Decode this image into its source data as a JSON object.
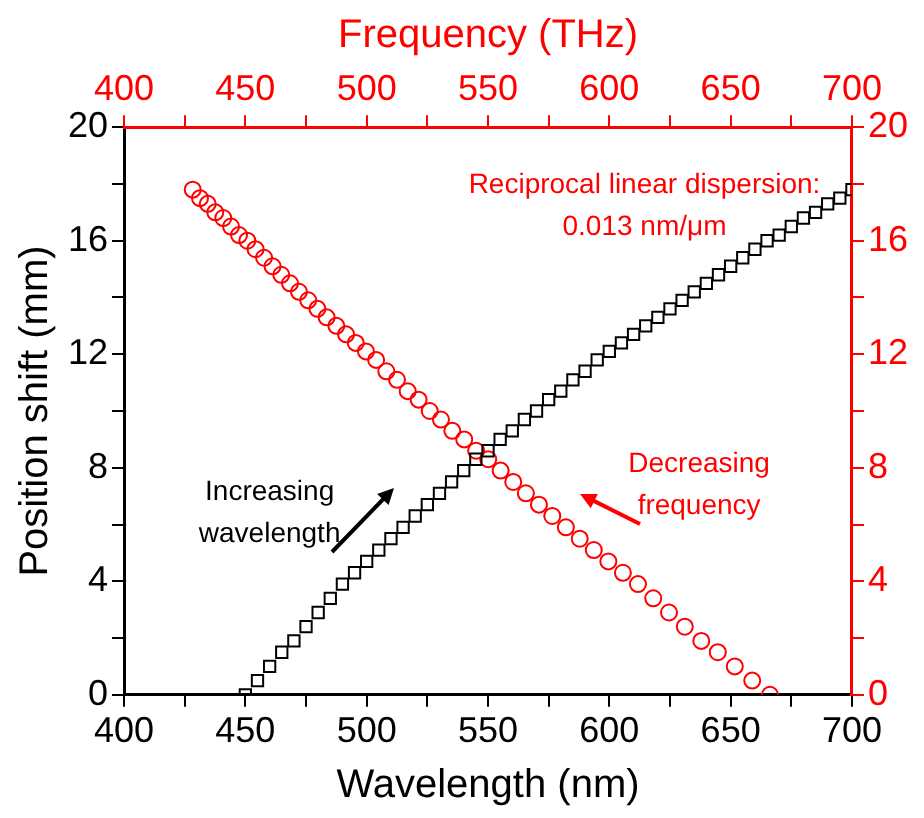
{
  "chart_data": {
    "type": "scatter",
    "xlabel": "Wavelength (nm)",
    "ylabel": "Position shift (mm)",
    "x2label": "Frequency (THz)",
    "xlim": [
      400,
      700
    ],
    "xticks": [
      400,
      {
        "value": 425,
        "label": null
      },
      450,
      {
        "value": 475,
        "label": null
      },
      500,
      {
        "value": 525,
        "label": null
      },
      550,
      {
        "value": 575,
        "label": null
      },
      600,
      {
        "value": 625,
        "label": null
      },
      650,
      {
        "value": 675,
        "label": null
      },
      700
    ],
    "x2lim": [
      400,
      700
    ],
    "x2ticks": [
      400,
      {
        "value": 425,
        "label": null
      },
      450,
      {
        "value": 475,
        "label": null
      },
      500,
      {
        "value": 525,
        "label": null
      },
      550,
      {
        "value": 575,
        "label": null
      },
      600,
      {
        "value": 625,
        "label": null
      },
      650,
      {
        "value": 675,
        "label": null
      },
      700
    ],
    "ylim": [
      0,
      20
    ],
    "yticks": [
      0,
      {
        "value": 2,
        "label": null
      },
      4,
      {
        "value": 6,
        "label": null
      },
      8,
      {
        "value": 10,
        "label": null
      },
      12,
      {
        "value": 14,
        "label": null
      },
      16,
      {
        "value": 18,
        "label": null
      },
      20
    ],
    "y2lim": [
      0,
      20
    ],
    "y2ticks": [
      0,
      {
        "value": 2,
        "label": null
      },
      4,
      {
        "value": 6,
        "label": null
      },
      8,
      {
        "value": 10,
        "label": null
      },
      12,
      {
        "value": 14,
        "label": null
      },
      16,
      {
        "value": 18,
        "label": null
      },
      20
    ],
    "grid": false,
    "legend": false,
    "annotations": [
      "Reciprocal linear dispersion:\n0.013 nm/μm",
      "Increasing\nwavelength",
      "Decreasing\nfrequency"
    ],
    "series": [
      {
        "color": "#000000",
        "marker": "square",
        "x": [
          450,
          455,
          460,
          465,
          470,
          475,
          480,
          485,
          490,
          495,
          500,
          505,
          510,
          515,
          520,
          525,
          530,
          535,
          540,
          545,
          550,
          555,
          560,
          565,
          570,
          575,
          580,
          585,
          590,
          595,
          600,
          605,
          610,
          615,
          620,
          625,
          630,
          635,
          640,
          645,
          650,
          655,
          660,
          665,
          670,
          675,
          680,
          685,
          690,
          695,
          700
        ],
        "values": [
          0,
          0.5,
          1.0,
          1.5,
          1.9,
          2.4,
          2.9,
          3.4,
          3.9,
          4.3,
          4.7,
          5.1,
          5.5,
          5.9,
          6.3,
          6.7,
          7.1,
          7.5,
          7.9,
          8.3,
          8.6,
          9.0,
          9.3,
          9.7,
          10.0,
          10.4,
          10.7,
          11.1,
          11.4,
          11.8,
          12.1,
          12.4,
          12.7,
          13.0,
          13.3,
          13.6,
          13.9,
          14.2,
          14.5,
          14.8,
          15.1,
          15.4,
          15.7,
          16.0,
          16.2,
          16.5,
          16.8,
          17.0,
          17.3,
          17.5,
          17.8
        ]
      },
      {
        "color": "#ff0000",
        "marker": "circle",
        "axis": "y2",
        "x": [
          666.2,
          658.9,
          651.7,
          644.7,
          637.9,
          631.1,
          624.6,
          618.1,
          611.8,
          605.6,
          599.6,
          593.6,
          587.8,
          582.1,
          576.5,
          571.0,
          565.6,
          560.4,
          555.2,
          550.1,
          545.1,
          540.2,
          535.3,
          530.6,
          526.0,
          521.4,
          516.9,
          512.5,
          508.1,
          503.9,
          499.7,
          495.5,
          491.5,
          487.5,
          483.5,
          479.7,
          475.9,
          472.1,
          468.4,
          464.8,
          461.2,
          457.7,
          454.2,
          450.8,
          447.4,
          444.1,
          440.9,
          437.6,
          434.5,
          431.3,
          428.3
        ],
        "values": [
          0,
          0.5,
          1.0,
          1.5,
          1.9,
          2.4,
          2.9,
          3.4,
          3.9,
          4.3,
          4.7,
          5.1,
          5.5,
          5.9,
          6.3,
          6.7,
          7.1,
          7.5,
          7.9,
          8.3,
          8.6,
          9.0,
          9.3,
          9.7,
          10.0,
          10.4,
          10.7,
          11.1,
          11.4,
          11.8,
          12.1,
          12.4,
          12.7,
          13.0,
          13.3,
          13.6,
          13.9,
          14.2,
          14.5,
          14.8,
          15.1,
          15.4,
          15.7,
          16.0,
          16.2,
          16.5,
          16.8,
          17.0,
          17.3,
          17.5,
          17.8
        ]
      }
    ]
  }
}
